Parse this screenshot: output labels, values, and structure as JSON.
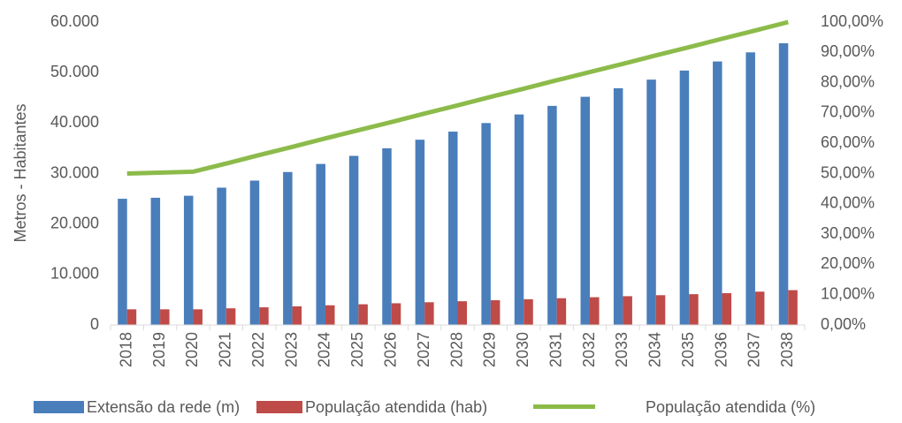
{
  "chart_data": {
    "type": "bar",
    "y_axis_label": "Metros - Habitantes",
    "categories": [
      "2018",
      "2019",
      "2020",
      "2021",
      "2022",
      "2023",
      "2024",
      "2025",
      "2026",
      "2027",
      "2028",
      "2029",
      "2030",
      "2031",
      "2032",
      "2033",
      "2034",
      "2035",
      "2036",
      "2037",
      "2038"
    ],
    "series": [
      {
        "name": "Extensão da rede (m)",
        "color": "#4a7ebb",
        "type": "bar",
        "values": [
          25000,
          25200,
          25600,
          27200,
          28600,
          30300,
          31900,
          33500,
          35000,
          36700,
          38300,
          40000,
          41700,
          43400,
          45200,
          46900,
          48600,
          50400,
          52200,
          54000,
          55800
        ]
      },
      {
        "name": "População atendida (hab)",
        "color": "#be4b48",
        "type": "bar",
        "values": [
          3100,
          3100,
          3100,
          3300,
          3500,
          3700,
          3900,
          4100,
          4300,
          4500,
          4700,
          4900,
          5100,
          5300,
          5500,
          5700,
          5900,
          6100,
          6300,
          6600,
          6900
        ]
      },
      {
        "name": "População atendida (%)",
        "color": "#8cbb4a",
        "type": "line",
        "axis": "y2",
        "values": [
          50,
          50.3,
          50.6,
          53.3,
          56.1,
          58.8,
          61.6,
          64.3,
          67,
          69.8,
          72.5,
          75.3,
          78,
          80.8,
          83.5,
          86.2,
          89,
          91.7,
          94.5,
          97.2,
          100
        ]
      }
    ],
    "ylim": [
      0,
      60000
    ],
    "yticks": [
      0,
      {
        "value": 10000,
        "label": "10.000"
      },
      {
        "value": 20000,
        "label": "20.000"
      },
      {
        "value": 30000,
        "label": "30.000"
      },
      {
        "value": 40000,
        "label": "40.000"
      },
      {
        "value": 50000,
        "label": "50.000"
      },
      {
        "value": 60000,
        "label": "60.000"
      }
    ],
    "y2lim": [
      0,
      100
    ],
    "y2ticks": [
      {
        "value": 0,
        "label": "0,00%"
      },
      {
        "value": 10,
        "label": "10,00%"
      },
      {
        "value": 20,
        "label": "20,00%"
      },
      {
        "value": 30,
        "label": "30,00%"
      },
      {
        "value": 40,
        "label": "40,00%"
      },
      {
        "value": 50,
        "label": "50,00%"
      },
      {
        "value": 60,
        "label": "60,00%"
      },
      {
        "value": 70,
        "label": "70,00%"
      },
      {
        "value": 80,
        "label": "80,00%"
      },
      {
        "value": 90,
        "label": "90,00%"
      },
      {
        "value": 100,
        "label": "100,00%"
      }
    ],
    "legend": "bottom"
  }
}
